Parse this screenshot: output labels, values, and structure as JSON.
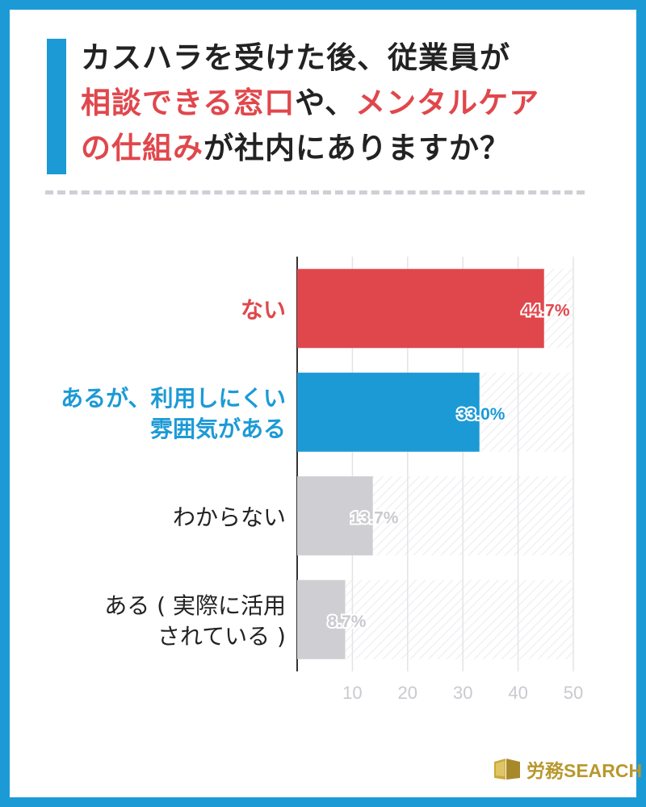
{
  "title": {
    "line1": [
      {
        "text": "カスハラを受けた後、従業員が",
        "highlight": false
      }
    ],
    "line2": [
      {
        "text": "相談できる窓口",
        "highlight": true
      },
      {
        "text": "や、",
        "highlight": false
      },
      {
        "text": "メンタルケア",
        "highlight": true
      }
    ],
    "line3": [
      {
        "text": "の仕組み",
        "highlight": true
      },
      {
        "text": "が社内にありますか？",
        "highlight": false
      }
    ]
  },
  "chart_data": {
    "type": "bar",
    "orientation": "horizontal",
    "categories": [
      [
        "ない"
      ],
      [
        "あるが、利用しにくい",
        "雰囲気がある"
      ],
      [
        "わからない"
      ],
      [
        "ある ( 実際に活用",
        "されている )"
      ]
    ],
    "values": [
      44.7,
      33.0,
      13.7,
      8.7
    ],
    "value_labels": [
      "44.7%",
      "33.0%",
      "13.7%",
      "8.7%"
    ],
    "bar_colors": [
      "#e0474c",
      "#1c9ad6",
      "#cfced3",
      "#cfced3"
    ],
    "label_colors": [
      "#e0474c",
      "#1c9ad6",
      "#222222",
      "#222222"
    ],
    "value_label_colors": [
      "#e0474c",
      "#1c9ad6",
      "#c9c9cf",
      "#c9c9cf"
    ],
    "xticks": [
      10,
      20,
      30,
      40,
      50
    ],
    "xlim": [
      0,
      50
    ],
    "grid": true
  },
  "logo": {
    "text": "労務SEARCH",
    "icon": "book-icon",
    "color": "#b8982e"
  }
}
